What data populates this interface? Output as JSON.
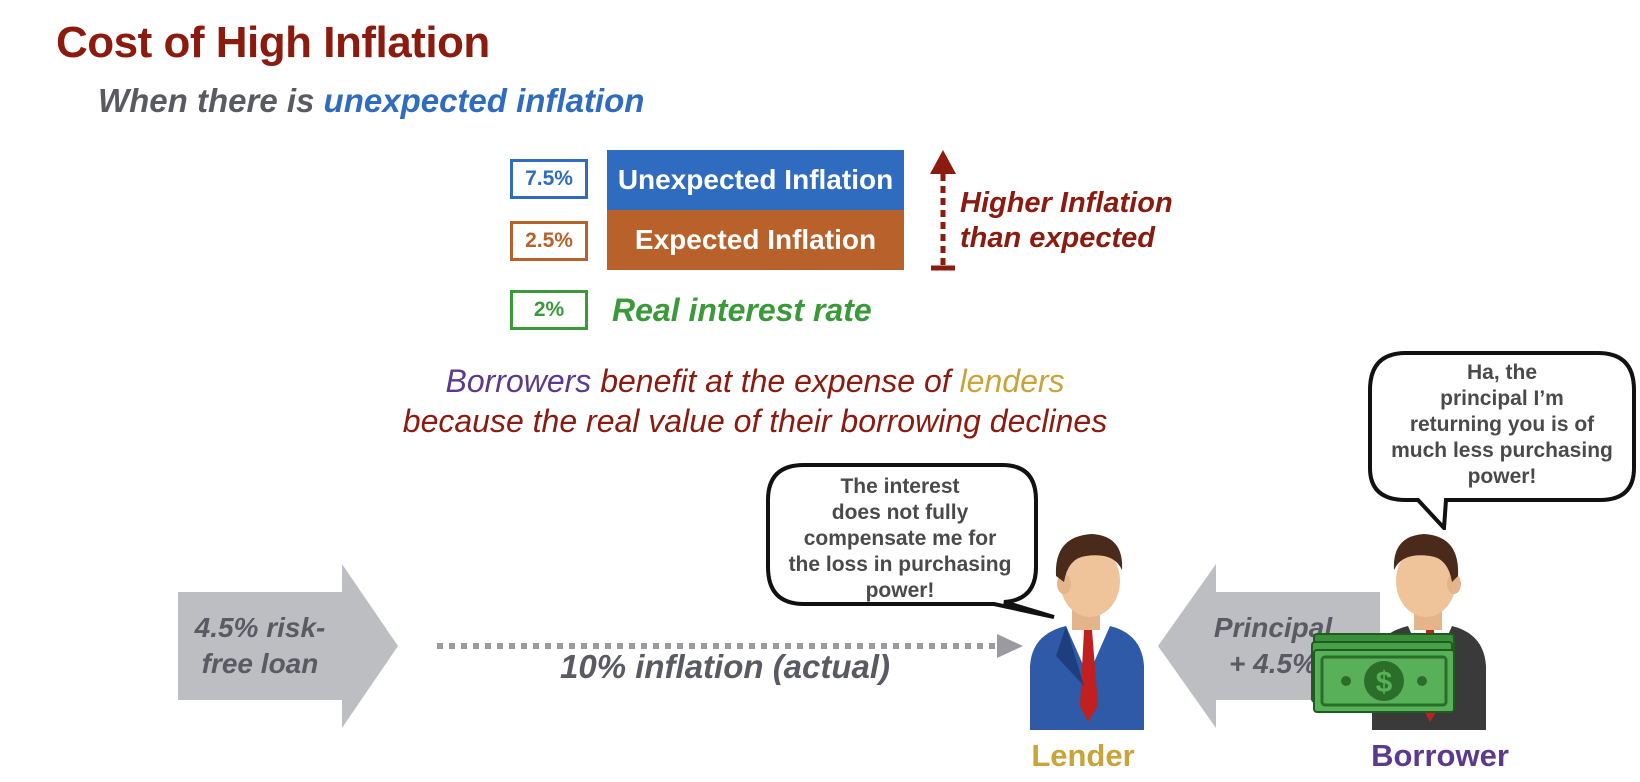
{
  "title": "Cost of High Inflation",
  "subtitle": {
    "prefix": "When there is ",
    "highlight": "unexpected inflation"
  },
  "inflation_stack": {
    "unexpected": {
      "pct": "7.5%",
      "label": "Unexpected Inflation",
      "color": "#2f6cc0"
    },
    "expected": {
      "pct": "2.5%",
      "label": "Expected Inflation",
      "color": "#b8612a"
    },
    "real": {
      "pct": "2%",
      "label": "Real interest rate",
      "color": "#3a9a3a"
    }
  },
  "higher_note": {
    "line1": "Higher Inflation",
    "line2": "than expected"
  },
  "statement": {
    "line1_a": "Borrowers",
    "line1_b": " benefit at the expense of ",
    "line1_c": "lenders",
    "line2": "because the real value of their borrowing declines"
  },
  "lender_bubble": [
    "The interest",
    "does not fully",
    "compensate me for",
    "the loss in purchasing",
    "power!"
  ],
  "borrower_bubble": [
    "Ha, the",
    "principal I’m",
    "returning you is of",
    "much less purchasing",
    "power!"
  ],
  "loan_arrow": {
    "line1": "4.5% risk-",
    "line2": "free loan"
  },
  "principal_arrow": {
    "line1": "Principal",
    "line2": "+ 4.5%"
  },
  "inflation_actual": "10% inflation (actual)",
  "lender_label": "Lender",
  "borrower_label": "Borrower",
  "colors": {
    "title": "#8b1a0f",
    "blue": "#2f6cc0",
    "orange": "#b8612a",
    "green": "#3a9a3a",
    "gray_text": "#5a5a62",
    "purple": "#5b3a8e",
    "gold": "#c9a43a",
    "arrow_gray": "#bdbec2"
  },
  "icons": [
    "up-arrow-icon",
    "dotted-right-arrow-icon",
    "lender-person-icon",
    "borrower-person-icon",
    "money-stack-icon",
    "speech-bubble-icon"
  ]
}
